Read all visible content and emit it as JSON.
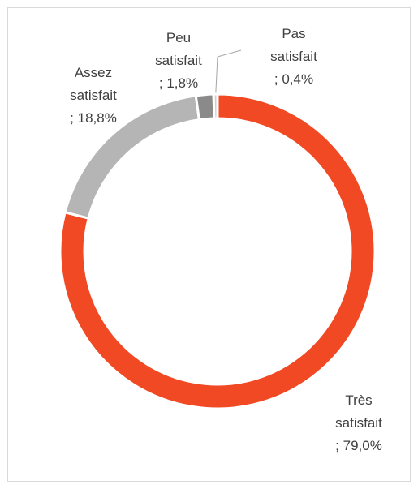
{
  "chart_data": {
    "type": "donut",
    "categories": [
      "Très satisfait",
      "Assez satisfait",
      "Peu satisfait",
      "Pas satisfait"
    ],
    "values": [
      79.0,
      18.8,
      1.8,
      0.4
    ],
    "value_labels": [
      "; 79,0%",
      "; 18,8%",
      "; 1,8%",
      "; 0,4%"
    ],
    "colors": [
      "#f04923",
      "#b5b5b5",
      "#8a8a8a",
      "#cfcfcf"
    ]
  }
}
